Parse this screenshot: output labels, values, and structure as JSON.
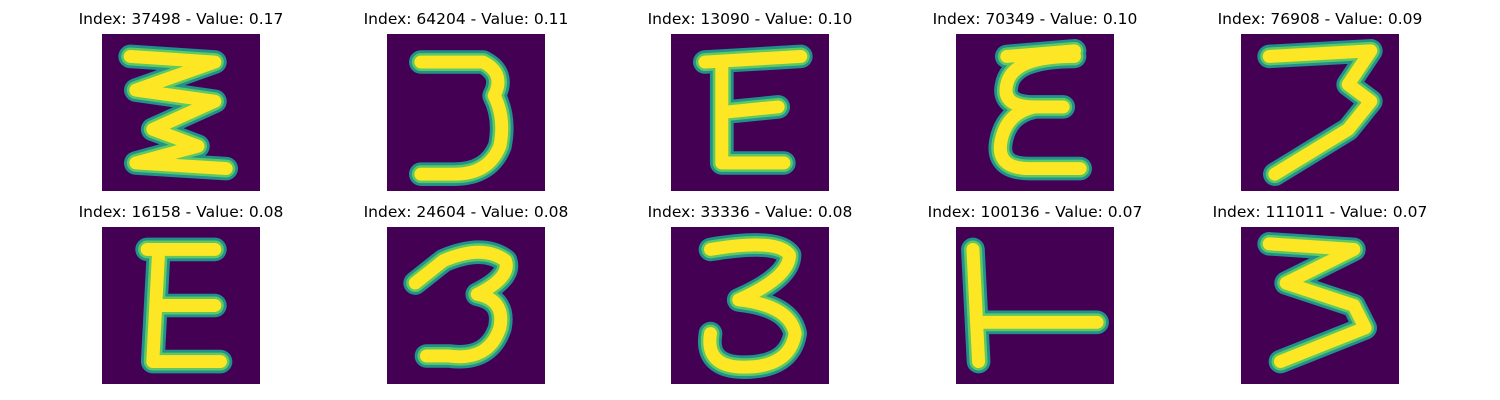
{
  "colors": {
    "background": "#440154",
    "stroke_halo": "#21918c",
    "stroke_mid": "#5ec962",
    "stroke_core": "#fde725"
  },
  "panels": [
    {
      "title": "Index: 37498 - Value: 0.17",
      "glyph": "zigzag-3"
    },
    {
      "title": "Index: 64204 - Value: 0.11",
      "glyph": "three"
    },
    {
      "title": "Index: 13090 - Value: 0.10",
      "glyph": "e"
    },
    {
      "title": "Index: 70349 - Value: 0.10",
      "glyph": "epsilon"
    },
    {
      "title": "Index: 76908 - Value: 0.09",
      "glyph": "seven"
    },
    {
      "title": "Index: 16158 - Value: 0.08",
      "glyph": "e-bold"
    },
    {
      "title": "Index: 24604 - Value: 0.08",
      "glyph": "three-loop"
    },
    {
      "title": "Index: 33336 - Value: 0.08",
      "glyph": "three-round"
    },
    {
      "title": "Index: 100136 - Value: 0.07",
      "glyph": "t-rotated"
    },
    {
      "title": "Index: 111011 - Value: 0.07",
      "glyph": "three-angular"
    }
  ]
}
